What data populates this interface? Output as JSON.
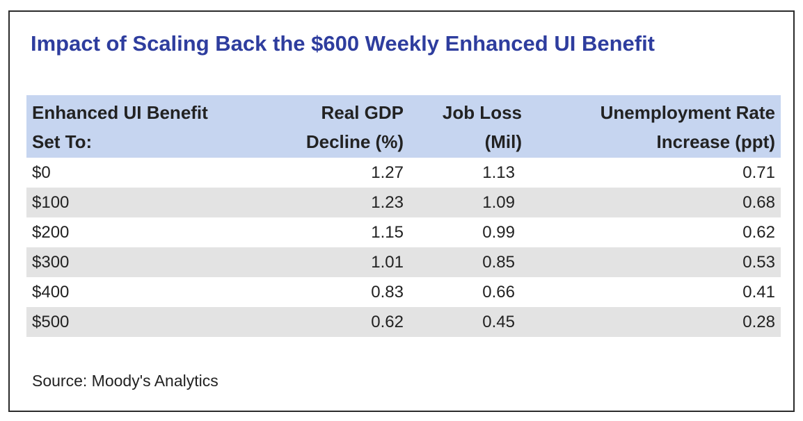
{
  "chart_data": {
    "type": "table",
    "title": "Impact of Scaling Back the $600 Weekly Enhanced UI Benefit",
    "columns": [
      {
        "lines": [
          "Enhanced UI Benefit",
          "Set To:"
        ]
      },
      {
        "lines": [
          "Real GDP",
          "Decline (%)"
        ]
      },
      {
        "lines": [
          "Job Loss",
          "(Mil)"
        ]
      },
      {
        "lines": [
          "Unemployment Rate",
          "Increase (ppt)"
        ]
      }
    ],
    "rows": [
      [
        "$0",
        "1.27",
        "1.13",
        "0.71"
      ],
      [
        "$100",
        "1.23",
        "1.09",
        "0.68"
      ],
      [
        "$200",
        "1.15",
        "0.99",
        "0.62"
      ],
      [
        "$300",
        "1.01",
        "0.85",
        "0.53"
      ],
      [
        "$400",
        "0.83",
        "0.66",
        "0.41"
      ],
      [
        "$500",
        "0.62",
        "0.45",
        "0.28"
      ]
    ],
    "source": "Source: Moody's Analytics"
  },
  "colors": {
    "title": "#2e3d9e",
    "header_background": "#c6d5f0",
    "alternate_row_background": "#e3e3e3"
  }
}
